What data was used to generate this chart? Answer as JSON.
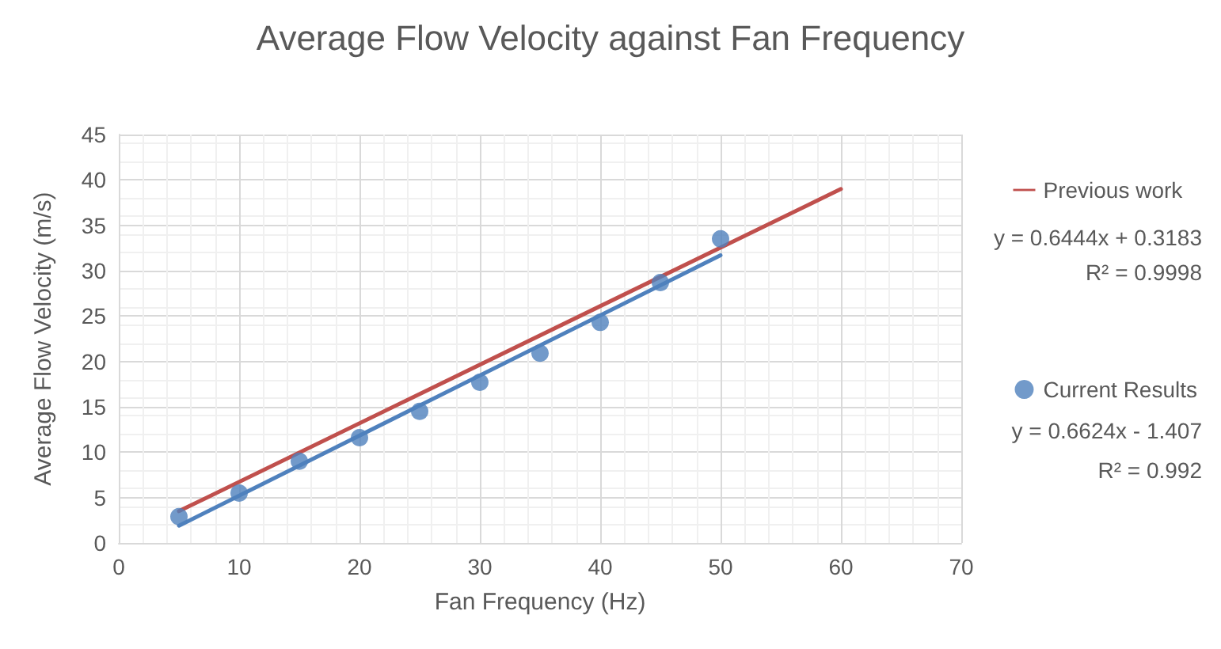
{
  "chart_data": {
    "type": "scatter",
    "title": "Average Flow Velocity against Fan Frequency",
    "xlabel": "Fan Frequency (Hz)",
    "ylabel": "Average Flow Velocity (m/s)",
    "xlim": [
      0,
      70
    ],
    "xticks": [
      0,
      10,
      20,
      30,
      40,
      50,
      60,
      70
    ],
    "ylim": [
      0,
      45
    ],
    "yticks": [
      0,
      5,
      10,
      15,
      20,
      25,
      30,
      35,
      40,
      45
    ],
    "grid": true,
    "legend": "right",
    "line_style": "solid",
    "series": [
      {
        "name": "Current Results",
        "marker": "circle",
        "color": "#4f81bd",
        "x": [
          5,
          10,
          15,
          20,
          25,
          30,
          35,
          40,
          45,
          50
        ],
        "values": [
          2.9,
          5.5,
          9,
          11.6,
          14.5,
          17.7,
          20.9,
          24.3,
          28.7,
          33.5
        ]
      },
      {
        "type": "line",
        "marker": "none",
        "color": "#4f81bd",
        "x": [
          5,
          50
        ],
        "values": [
          1.9,
          31.7
        ]
      },
      {
        "name": "Previous work",
        "type": "line",
        "marker": "none",
        "color": "#c0504d",
        "x": [
          5,
          60
        ],
        "values": [
          3.5,
          39.0
        ]
      }
    ],
    "annotations": [
      "y = 0.6444x + 0.3183",
      "R² = 0.9998",
      "y = 0.6624x - 1.407",
      "R² = 0.992"
    ]
  }
}
